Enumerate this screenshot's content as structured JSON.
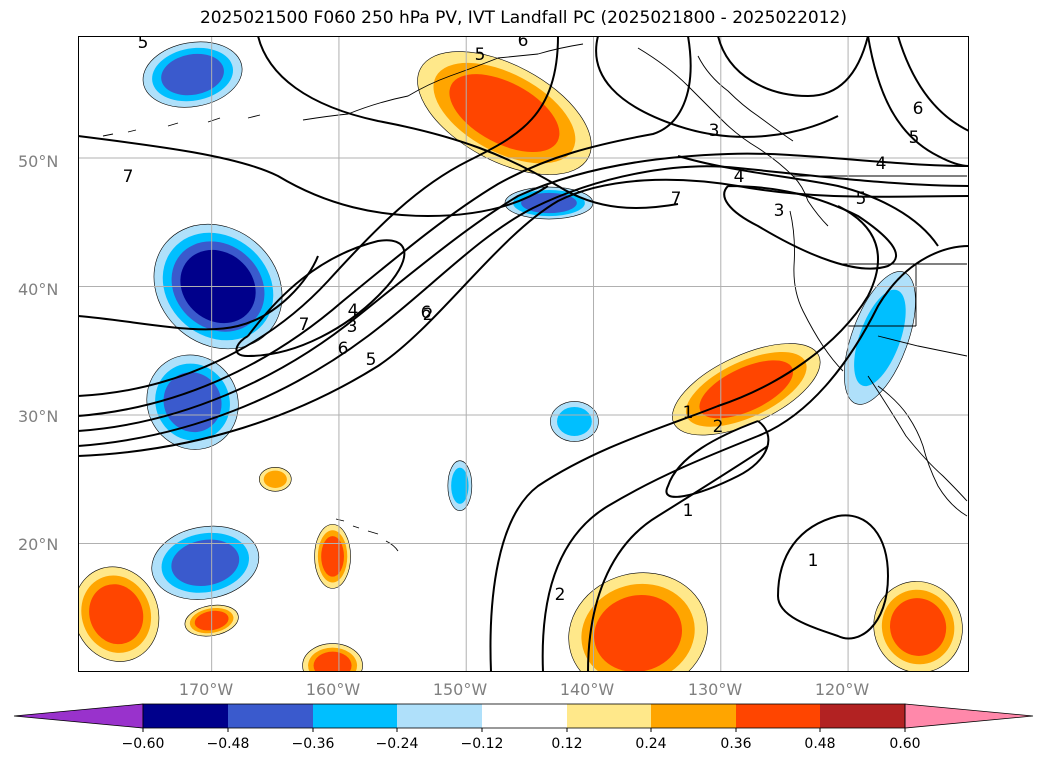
{
  "chart_data": {
    "type": "heatmap",
    "title": "2025021500 F060 250 hPa PV, IVT Landfall PC (2025021800 - 2025022012)",
    "lat_ticks": [
      "50°N",
      "40°N",
      "30°N",
      "20°N"
    ],
    "lon_ticks": [
      "170°W",
      "160°W",
      "150°W",
      "140°W",
      "130°W",
      "120°W"
    ],
    "extent": {
      "lon": [
        -180.5,
        -110.5
      ],
      "lat": [
        10,
        59.5
      ]
    },
    "grid": true,
    "colorbar": {
      "ticks": [
        "−0.60",
        "−0.48",
        "−0.36",
        "−0.24",
        "−0.12",
        "0.12",
        "0.24",
        "0.36",
        "0.48",
        "0.60"
      ],
      "levels": [
        -0.6,
        -0.48,
        -0.36,
        -0.24,
        -0.12,
        0.12,
        0.24,
        0.36,
        0.48,
        0.6
      ],
      "colors": [
        "#9932cc",
        "#00008b",
        "#3a5acd",
        "#00bfff",
        "#afe0fa",
        "#ffffff",
        "#ffe88a",
        "#ffa500",
        "#ff4500",
        "#b22222",
        "#ff88aa"
      ],
      "extend": "both",
      "orientation": "horizontal"
    },
    "contour_labels": [
      "5",
      "6",
      "5",
      "3",
      "7",
      "6",
      "5",
      "4",
      "7",
      "4",
      "3",
      "6",
      "5",
      "6",
      "7",
      "5",
      "4",
      "3",
      "2",
      "1",
      "2",
      "1",
      "2",
      "1"
    ],
    "pv_contour_levels": [
      1,
      2,
      3,
      4,
      5,
      6,
      7
    ],
    "shaded_features": [
      {
        "lon": -171.5,
        "lat": 56.5,
        "value": -0.4
      },
      {
        "lon": -147.0,
        "lat": 53.5,
        "value": 0.4
      },
      {
        "lon": -143.5,
        "lat": 46.5,
        "value": -0.38
      },
      {
        "lon": -169.5,
        "lat": 40.0,
        "value": -0.52
      },
      {
        "lon": -171.5,
        "lat": 31.0,
        "value": -0.4
      },
      {
        "lon": -128.0,
        "lat": 32.0,
        "value": 0.42
      },
      {
        "lon": -117.5,
        "lat": 36.0,
        "value": -0.3
      },
      {
        "lon": -141.5,
        "lat": 29.5,
        "value": -0.28
      },
      {
        "lon": -150.5,
        "lat": 24.5,
        "value": -0.26
      },
      {
        "lon": -170.5,
        "lat": 18.5,
        "value": -0.4
      },
      {
        "lon": -160.5,
        "lat": 19.0,
        "value": 0.36
      },
      {
        "lon": -165.0,
        "lat": 25.0,
        "value": 0.26
      },
      {
        "lon": -177.5,
        "lat": 14.5,
        "value": 0.42
      },
      {
        "lon": -170.0,
        "lat": 14.0,
        "value": 0.36
      },
      {
        "lon": -160.5,
        "lat": 10.5,
        "value": 0.36
      },
      {
        "lon": -136.5,
        "lat": 13.0,
        "value": 0.42
      },
      {
        "lon": -114.5,
        "lat": 13.5,
        "value": 0.36
      }
    ]
  }
}
